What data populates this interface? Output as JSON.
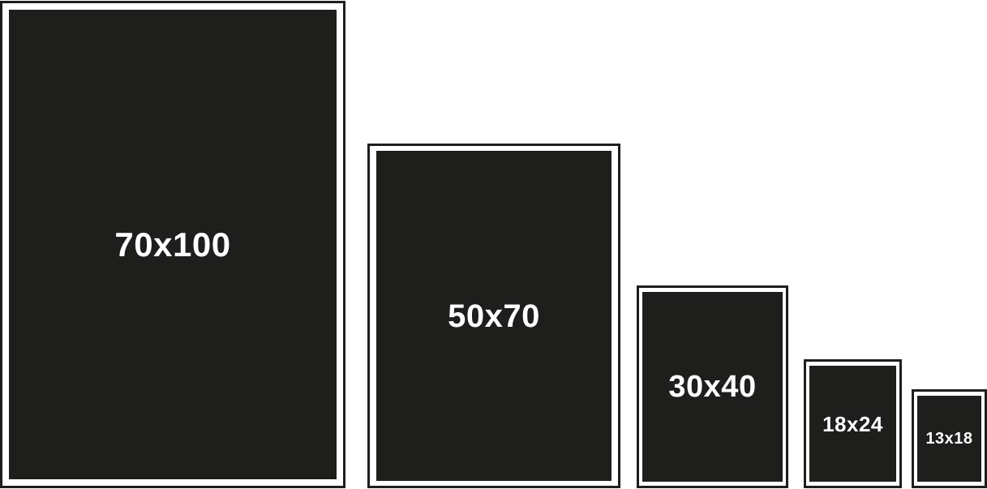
{
  "frames": [
    {
      "label": "70x100"
    },
    {
      "label": "50x70"
    },
    {
      "label": "30x40"
    },
    {
      "label": "18x24"
    },
    {
      "label": "13x18"
    }
  ],
  "colors": {
    "background": "#ffffff",
    "frame": "#1e1e1c",
    "text": "#ffffff"
  }
}
